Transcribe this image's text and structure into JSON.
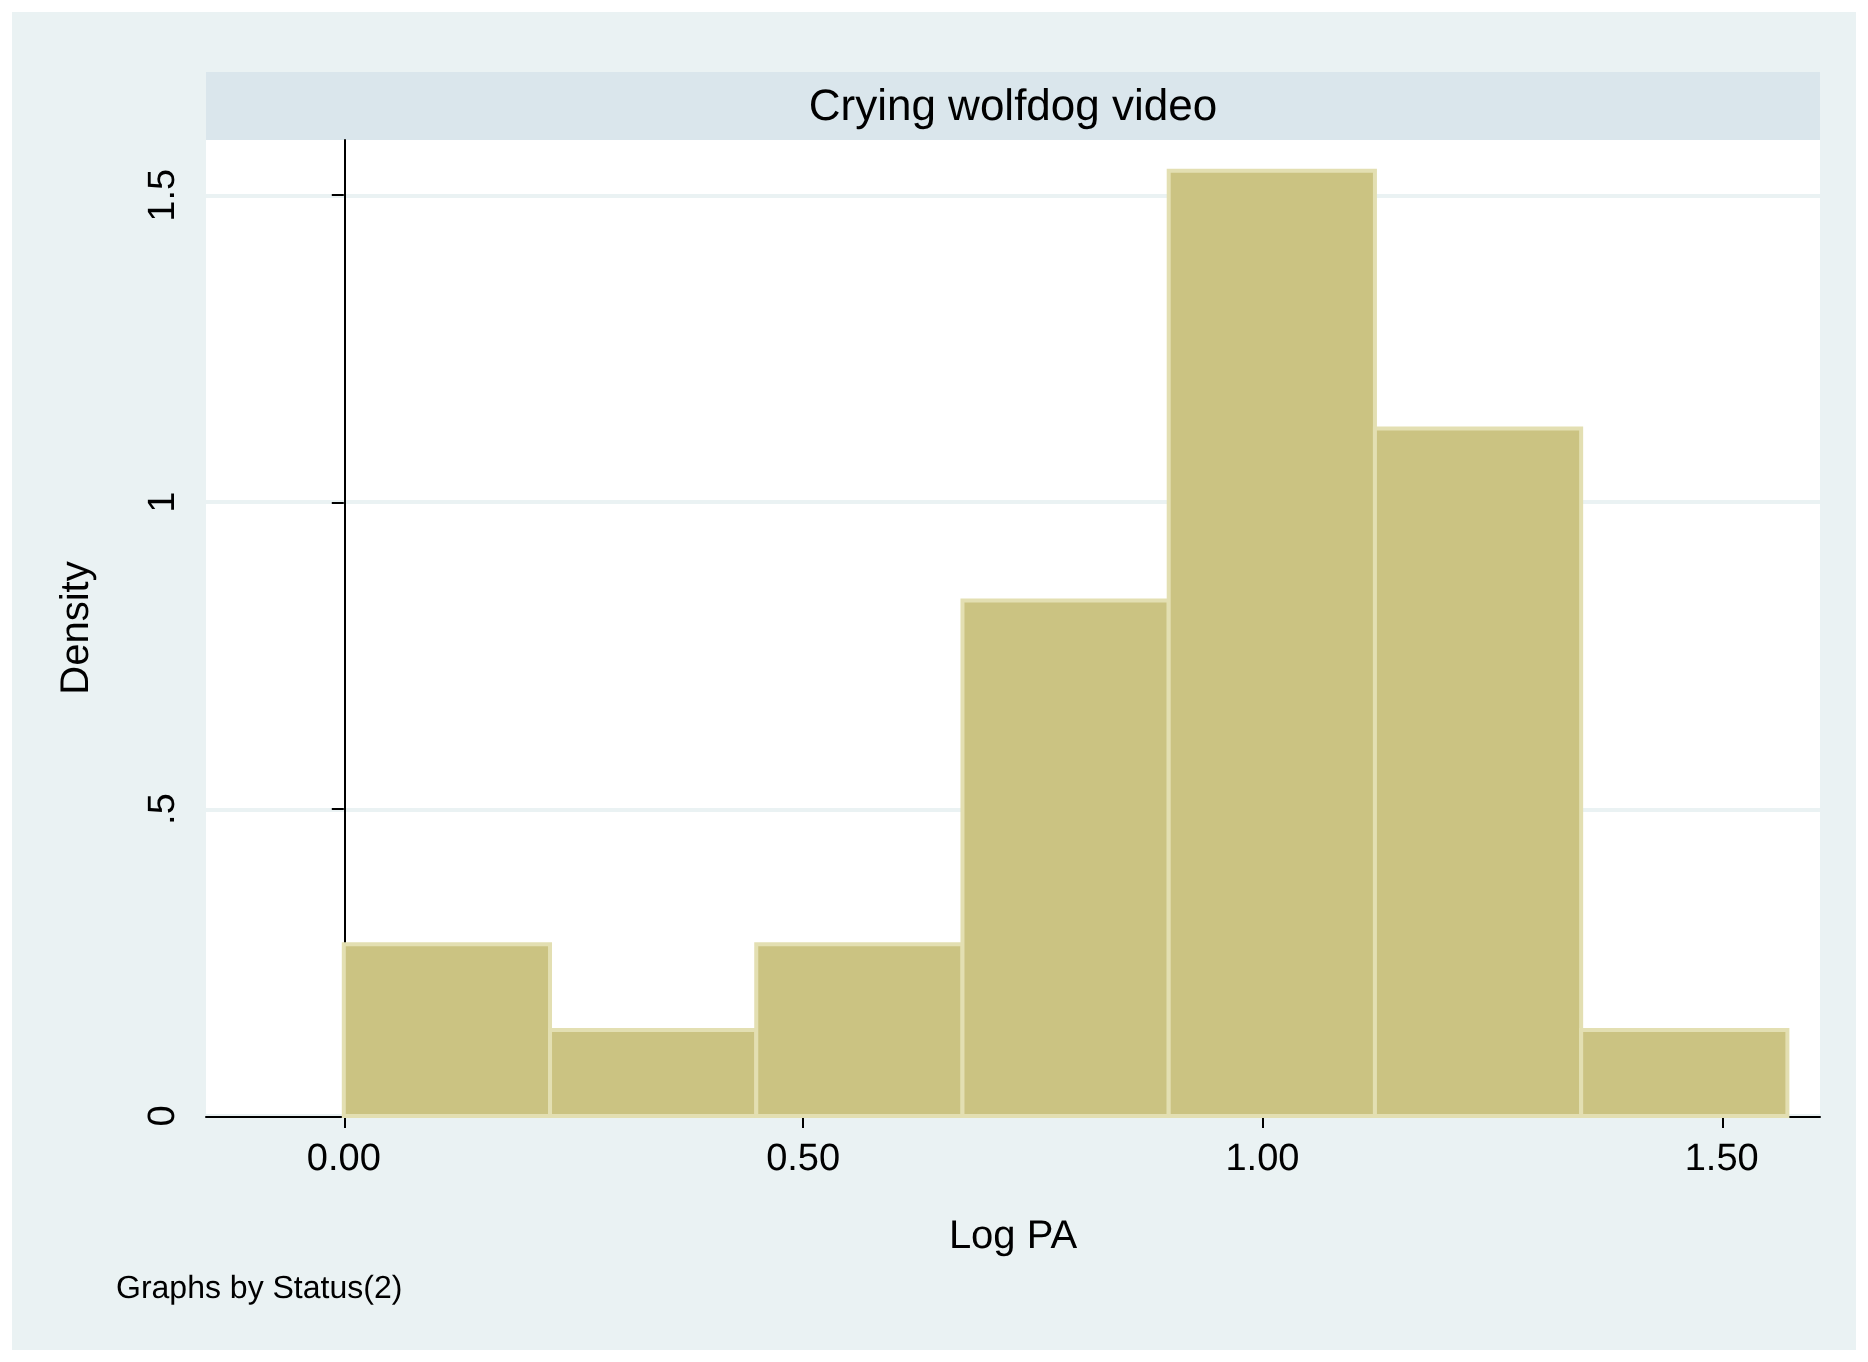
{
  "chart_data": {
    "type": "histogram",
    "title": "Crying wolfdog video",
    "xlabel": "Log PA",
    "ylabel": "Density",
    "annotations": [
      "Graphs by Status(2)"
    ],
    "bins": [
      0,
      0.2245,
      0.449,
      0.6735,
      0.898,
      1.1225,
      1.347,
      1.5715
    ],
    "values": [
      0.28,
      0.14,
      0.28,
      0.84,
      1.54,
      1.12,
      0.14
    ],
    "color": "#cbc382",
    "xlim": [
      -0.15,
      1.607
    ],
    "xticks": [
      {
        "value": 0,
        "label": "0.00"
      },
      {
        "value": 0.5,
        "label": "0.50"
      },
      {
        "value": 1,
        "label": "1.00"
      },
      {
        "value": 1.5,
        "label": "1.50"
      }
    ],
    "ylim": [
      0,
      1.59
    ],
    "yticks": [
      0,
      {
        "value": 0.5,
        "label": ".5"
      },
      1,
      {
        "value": 1.5,
        "label": "1.5"
      }
    ],
    "grid": "y"
  }
}
